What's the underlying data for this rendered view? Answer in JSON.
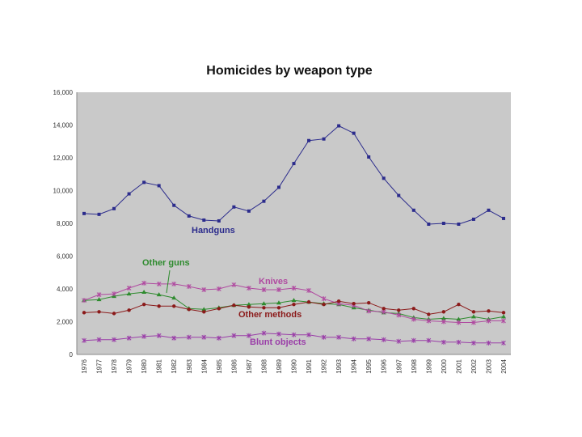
{
  "chart_data": {
    "type": "line",
    "title": "Homicides by weapon type",
    "xlabel": "",
    "ylabel": "",
    "ylim": [
      0,
      16000
    ],
    "grid": false,
    "y_ticks": [
      "0",
      "2,000",
      "4,000",
      "6,000",
      "8,000",
      "10,000",
      "12,000",
      "14,000",
      "16,000"
    ],
    "y_tick_values": [
      0,
      2000,
      4000,
      6000,
      8000,
      10000,
      12000,
      14000,
      16000
    ],
    "x": [
      "1976",
      "1977",
      "1978",
      "1979",
      "1980",
      "1981",
      "1982",
      "1983",
      "1984",
      "1985",
      "1986",
      "1987",
      "1988",
      "1989",
      "1990",
      "1991",
      "1992",
      "1993",
      "1994",
      "1995",
      "1996",
      "1997",
      "1998",
      "1999",
      "2000",
      "2001",
      "2002",
      "2003",
      "2004"
    ],
    "series": [
      {
        "name": "Handguns",
        "label": "Handguns",
        "color": "#2b2b8c",
        "marker": "square",
        "values": [
          8600,
          8550,
          8900,
          9800,
          10500,
          10300,
          9100,
          8450,
          8200,
          8150,
          9000,
          8750,
          9350,
          10200,
          11650,
          13050,
          13150,
          13950,
          13500,
          12050,
          10750,
          9700,
          8800,
          7950,
          8000,
          7950,
          8250,
          8800,
          8300
        ]
      },
      {
        "name": "Other guns",
        "label": "Other guns",
        "color": "#2e8b2e",
        "marker": "triangle",
        "values": [
          3300,
          3350,
          3550,
          3700,
          3800,
          3650,
          3450,
          2800,
          2750,
          2850,
          3000,
          3050,
          3100,
          3150,
          3300,
          3200,
          3100,
          3050,
          2850,
          2700,
          2550,
          2500,
          2250,
          2150,
          2200,
          2150,
          2300,
          2150,
          2300
        ]
      },
      {
        "name": "Knives",
        "label": "Knives",
        "color": "#b04aa0",
        "marker": "x",
        "values": [
          3300,
          3650,
          3700,
          4050,
          4350,
          4300,
          4300,
          4150,
          3950,
          4000,
          4250,
          4050,
          3950,
          3950,
          4050,
          3900,
          3400,
          3100,
          3000,
          2650,
          2600,
          2400,
          2150,
          2050,
          2000,
          1950,
          1950,
          2050,
          2050
        ]
      },
      {
        "name": "Other methods",
        "label": "Other methods",
        "color": "#8b1a1a",
        "marker": "circle",
        "values": [
          2550,
          2600,
          2500,
          2700,
          3050,
          2950,
          2950,
          2750,
          2600,
          2800,
          3000,
          2900,
          2850,
          2850,
          3050,
          3200,
          3050,
          3250,
          3100,
          3150,
          2800,
          2700,
          2800,
          2450,
          2600,
          3050,
          2600,
          2650,
          2550
        ]
      },
      {
        "name": "Blunt objects",
        "label": "Blunt objects",
        "color": "#9a3ea8",
        "marker": "x",
        "values": [
          850,
          900,
          900,
          1000,
          1100,
          1150,
          1000,
          1050,
          1050,
          1000,
          1150,
          1150,
          1300,
          1250,
          1200,
          1200,
          1050,
          1050,
          950,
          950,
          900,
          800,
          850,
          850,
          750,
          750,
          700,
          700,
          700
        ]
      }
    ]
  }
}
